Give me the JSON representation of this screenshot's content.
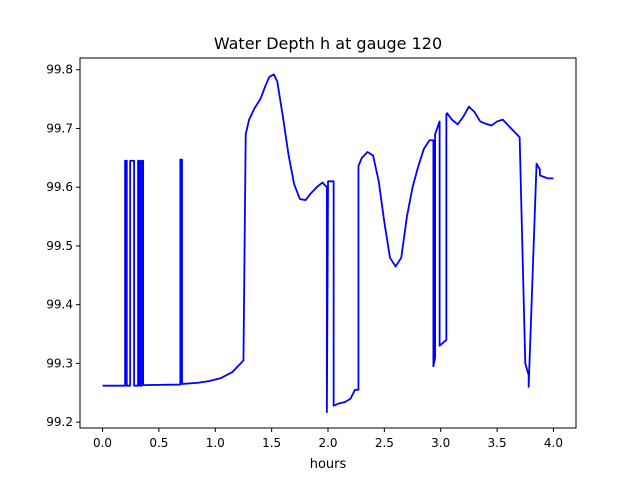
{
  "chart_data": {
    "type": "line",
    "title": "Water Depth h at gauge 120",
    "xlabel": "hours",
    "ylabel": "",
    "xlim": [
      -0.2,
      4.2
    ],
    "ylim": [
      99.19,
      99.82
    ],
    "xticks": [
      0.0,
      0.5,
      1.0,
      1.5,
      2.0,
      2.5,
      3.0,
      3.5,
      4.0
    ],
    "xtick_labels": [
      "0.0",
      "0.5",
      "1.0",
      "1.5",
      "2.0",
      "2.5",
      "3.0",
      "3.5",
      "4.0"
    ],
    "yticks": [
      99.2,
      99.3,
      99.4,
      99.5,
      99.6,
      99.7,
      99.8
    ],
    "ytick_labels": [
      "99.2",
      "99.3",
      "99.4",
      "99.5",
      "99.6",
      "99.7",
      "99.8"
    ],
    "grid": false,
    "legend": "none",
    "series": [
      {
        "color": "#0000ff",
        "x": [
          0.0,
          0.2,
          0.2,
          0.215,
          0.215,
          0.245,
          0.245,
          0.28,
          0.28,
          0.315,
          0.315,
          0.33,
          0.33,
          0.345,
          0.345,
          0.36,
          0.36,
          0.69,
          0.69,
          0.705,
          0.705,
          0.85,
          0.95,
          1.05,
          1.15,
          1.2,
          1.25,
          1.27,
          1.27,
          1.3,
          1.35,
          1.4,
          1.45,
          1.48,
          1.52,
          1.55,
          1.6,
          1.65,
          1.7,
          1.75,
          1.8,
          1.85,
          1.9,
          1.95,
          1.99,
          1.99,
          2.0,
          2.0,
          2.05,
          2.05,
          2.1,
          2.15,
          2.2,
          2.24,
          2.27,
          2.27,
          2.3,
          2.35,
          2.4,
          2.45,
          2.5,
          2.55,
          2.6,
          2.65,
          2.7,
          2.75,
          2.8,
          2.85,
          2.9,
          2.935,
          2.935,
          2.95,
          2.95,
          2.99,
          2.99,
          3.05,
          3.05,
          3.06,
          3.06,
          3.1,
          3.15,
          3.2,
          3.25,
          3.3,
          3.35,
          3.4,
          3.45,
          3.5,
          3.55,
          3.6,
          3.65,
          3.7,
          3.75,
          3.78,
          3.78,
          3.85,
          3.88,
          3.88,
          3.95,
          4.0
        ],
        "y": [
          99.262,
          99.262,
          99.645,
          99.645,
          99.262,
          99.262,
          99.645,
          99.645,
          99.262,
          99.262,
          99.645,
          99.645,
          99.262,
          99.262,
          99.645,
          99.645,
          99.263,
          99.264,
          99.647,
          99.647,
          99.265,
          99.267,
          99.27,
          99.275,
          99.285,
          99.295,
          99.305,
          99.69,
          99.69,
          99.715,
          99.735,
          99.75,
          99.775,
          99.788,
          99.792,
          99.78,
          99.72,
          99.655,
          99.605,
          99.58,
          99.578,
          99.59,
          99.6,
          99.608,
          99.6,
          99.217,
          99.598,
          99.61,
          99.61,
          99.228,
          99.232,
          99.234,
          99.24,
          99.255,
          99.255,
          99.636,
          99.65,
          99.66,
          99.654,
          99.61,
          99.54,
          99.48,
          99.465,
          99.48,
          99.55,
          99.6,
          99.635,
          99.665,
          99.68,
          99.68,
          99.295,
          99.31,
          99.69,
          99.712,
          99.33,
          99.34,
          99.725,
          99.726,
          99.725,
          99.715,
          99.707,
          99.72,
          99.737,
          99.728,
          99.712,
          99.708,
          99.705,
          99.712,
          99.715,
          99.705,
          99.695,
          99.685,
          99.3,
          99.28,
          99.26,
          99.64,
          99.63,
          99.62,
          99.615,
          99.615
        ]
      }
    ]
  }
}
